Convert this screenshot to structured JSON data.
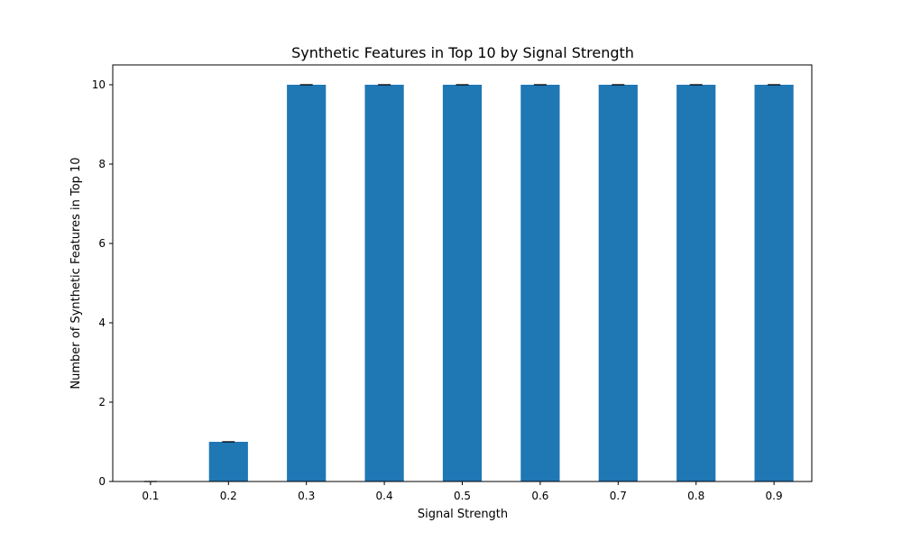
{
  "chart_data": {
    "type": "bar",
    "title": "Synthetic Features in Top 10 by Signal Strength",
    "xlabel": "Signal Strength",
    "ylabel": "Number of Synthetic Features in Top 10",
    "categories": [
      "0.1",
      "0.2",
      "0.3",
      "0.4",
      "0.5",
      "0.6",
      "0.7",
      "0.8",
      "0.9"
    ],
    "values": [
      0,
      1,
      10,
      10,
      10,
      10,
      10,
      10,
      10
    ],
    "error": [
      0,
      0,
      0,
      0,
      0,
      0,
      0,
      0,
      0
    ],
    "ylim": [
      0,
      10.5
    ],
    "yticks": [
      "0",
      "2",
      "4",
      "6",
      "8",
      "10"
    ],
    "grid": false,
    "colors": {
      "bar": "#1f77b4",
      "error_bar": "#000000",
      "axes": "#000000"
    }
  }
}
